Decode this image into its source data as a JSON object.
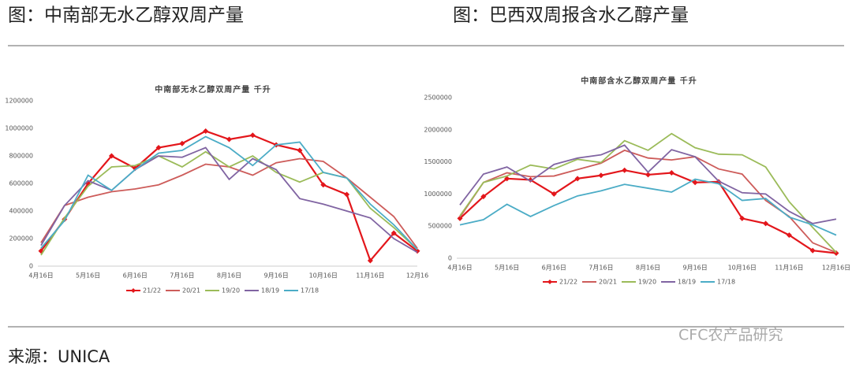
{
  "headings": [
    "图：中南部无水乙醇双周产量",
    "图：巴西双周报含水乙醇产量"
  ],
  "source": "来源：UNICA",
  "watermark": "CFC农产品研究",
  "chart_data": [
    {
      "type": "line",
      "title": "中南部无水乙醇双周产量 千升",
      "categories": [
        "4月16日",
        null,
        "5月16日",
        null,
        "6月16日",
        null,
        "7月16日",
        null,
        "8月16日",
        null,
        "9月16日",
        null,
        "10月16日",
        null,
        "11月16日",
        null,
        "12月16"
      ],
      "ylim": [
        0,
        1200000
      ],
      "yticks": [
        0,
        200000,
        400000,
        600000,
        800000,
        1000000,
        1200000
      ],
      "grid": false,
      "legend": "bottom",
      "series": [
        {
          "name": "21/22",
          "color": "#e3161b",
          "marker": "diamond",
          "values": [
            110000,
            340000,
            600000,
            800000,
            710000,
            860000,
            890000,
            980000,
            920000,
            950000,
            880000,
            840000,
            590000,
            520000,
            40000,
            240000,
            110000
          ]
        },
        {
          "name": "20/21",
          "color": "#cd5c5a",
          "values": [
            170000,
            440000,
            500000,
            540000,
            560000,
            590000,
            660000,
            740000,
            720000,
            660000,
            750000,
            780000,
            760000,
            640000,
            500000,
            360000,
            130000
          ]
        },
        {
          "name": "19/20",
          "color": "#9bbb59",
          "values": [
            80000,
            350000,
            580000,
            720000,
            730000,
            800000,
            720000,
            830000,
            720000,
            800000,
            680000,
            610000,
            680000,
            640000,
            420000,
            280000,
            120000
          ]
        },
        {
          "name": "18/19",
          "color": "#8064a2",
          "values": [
            150000,
            440000,
            620000,
            550000,
            700000,
            800000,
            790000,
            860000,
            630000,
            780000,
            700000,
            490000,
            450000,
            400000,
            350000,
            200000,
            100000
          ]
        },
        {
          "name": "17/18",
          "color": "#4bacc6",
          "values": [
            130000,
            330000,
            660000,
            550000,
            700000,
            820000,
            840000,
            940000,
            860000,
            730000,
            880000,
            900000,
            680000,
            640000,
            450000,
            300000,
            120000
          ]
        }
      ]
    },
    {
      "type": "line",
      "title": "中南部含水乙醇双周产量 千升",
      "categories": [
        "4月16日",
        null,
        "5月16日",
        null,
        "6月16日",
        null,
        "7月16日",
        null,
        "8月16日",
        null,
        "9月16日",
        null,
        "10月16日",
        null,
        "11月16日",
        null,
        "12月16日"
      ],
      "ylim": [
        0,
        2500000
      ],
      "yticks": [
        0,
        500000,
        1000000,
        1500000,
        2000000,
        2500000
      ],
      "grid": false,
      "legend": "bottom",
      "series": [
        {
          "name": "21/22",
          "color": "#e3161b",
          "marker": "diamond",
          "values": [
            620000,
            960000,
            1240000,
            1220000,
            1000000,
            1240000,
            1290000,
            1370000,
            1300000,
            1330000,
            1180000,
            1190000,
            620000,
            540000,
            360000,
            120000,
            80000
          ]
        },
        {
          "name": "20/21",
          "color": "#cd5c5a",
          "values": [
            640000,
            1180000,
            1330000,
            1270000,
            1280000,
            1380000,
            1480000,
            1680000,
            1560000,
            1530000,
            1580000,
            1390000,
            1310000,
            900000,
            650000,
            240000,
            90000
          ]
        },
        {
          "name": "19/20",
          "color": "#9bbb59",
          "values": [
            660000,
            1180000,
            1280000,
            1450000,
            1390000,
            1540000,
            1490000,
            1830000,
            1680000,
            1940000,
            1720000,
            1620000,
            1610000,
            1420000,
            880000,
            480000,
            90000
          ]
        },
        {
          "name": "18/19",
          "color": "#8064a2",
          "values": [
            830000,
            1310000,
            1420000,
            1200000,
            1460000,
            1560000,
            1610000,
            1760000,
            1340000,
            1690000,
            1580000,
            1200000,
            1020000,
            1000000,
            730000,
            540000,
            610000
          ]
        },
        {
          "name": "17/18",
          "color": "#4bacc6",
          "values": [
            520000,
            600000,
            840000,
            650000,
            820000,
            970000,
            1050000,
            1150000,
            1090000,
            1030000,
            1230000,
            1160000,
            900000,
            930000,
            640000,
            520000,
            360000
          ]
        }
      ]
    }
  ]
}
